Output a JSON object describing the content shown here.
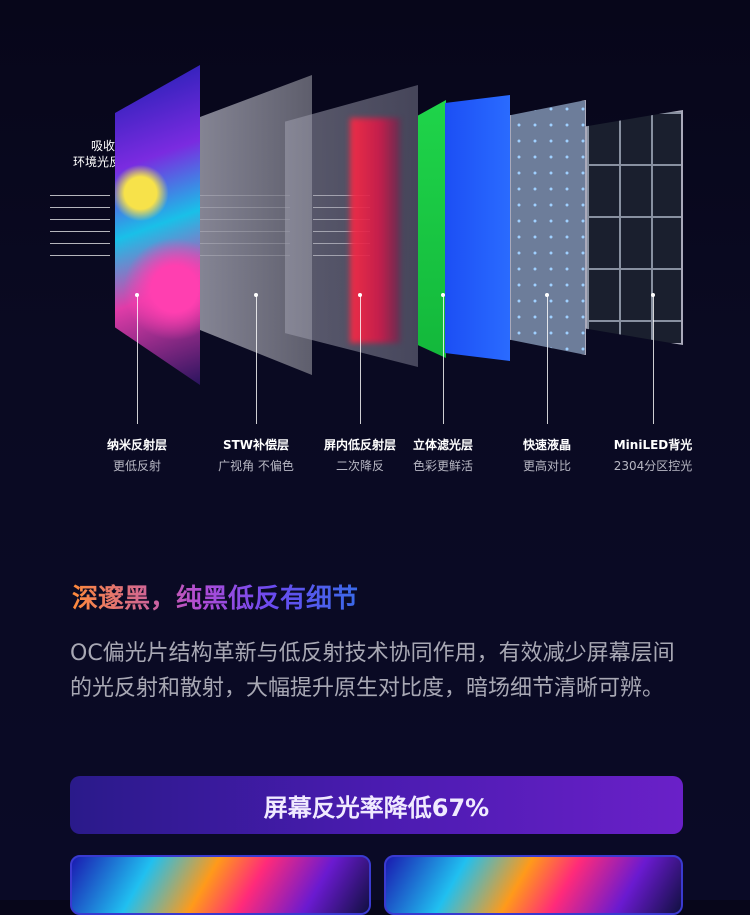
{
  "diagram": {
    "absorb_label": "吸收\n环境光反射",
    "absorb_line1": "吸收",
    "absorb_line2": "环境光反射",
    "layers": [
      {
        "title": "纳米反射层",
        "subtitle": "更低反射"
      },
      {
        "title": "STW补偿层",
        "subtitle": "广视角 不偏色"
      },
      {
        "title": "屏内低反射层",
        "subtitle": "二次降反"
      },
      {
        "title": "立体滤光层",
        "subtitle": "色彩更鲜活"
      },
      {
        "title": "快速液晶",
        "subtitle": "更高对比"
      },
      {
        "title": "MiniLED背光",
        "subtitle": "2304分区控光"
      }
    ]
  },
  "section": {
    "title": "深邃黑，纯黑低反有细节",
    "description": "OC偏光片结构革新与低反射技术协同作用，有效减少屏幕层间的光反射和散射，大幅提升原生对比度，暗场细节清晰可辨。"
  },
  "banner": {
    "text": "屏幕反光率降低67%"
  },
  "colors": {
    "background": "#07061a",
    "banner": "#4a1bb0",
    "title_gradient_start": "#ff8a3a",
    "title_gradient_end": "#3a6ae8"
  }
}
